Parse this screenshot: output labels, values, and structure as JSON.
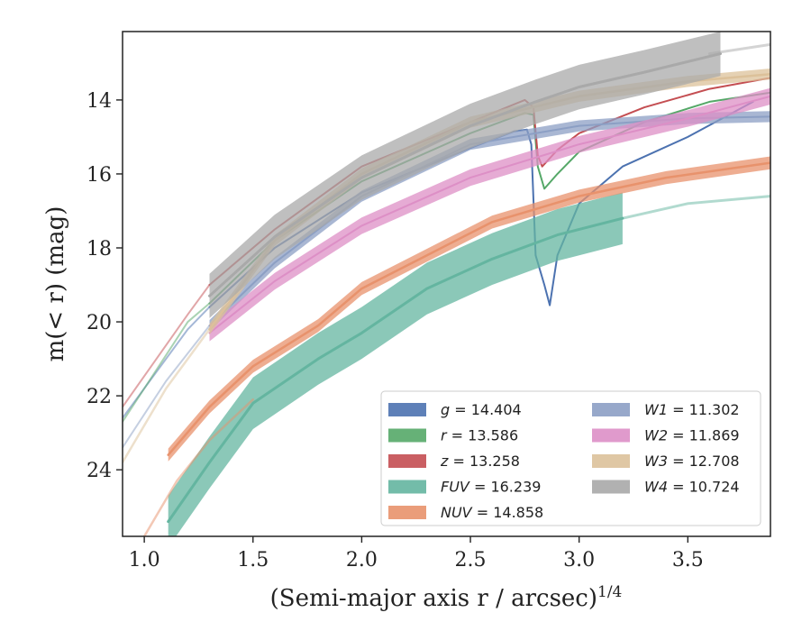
{
  "chart_data": {
    "type": "line",
    "xlabel": "(Semi-major axis r / arcsec)",
    "xlabel_sup": "1/4",
    "ylabel": "m(< r) (mag)",
    "xlim": [
      0.9,
      3.88
    ],
    "ylim": [
      25.8,
      12.15
    ],
    "y_inverted": true,
    "xticks": [
      1.0,
      1.5,
      2.0,
      2.5,
      3.0,
      3.5
    ],
    "xtick_labels": [
      "1.0",
      "1.5",
      "2.0",
      "2.5",
      "3.0",
      "3.5"
    ],
    "yticks": [
      14,
      16,
      18,
      20,
      22,
      24
    ],
    "ytick_labels": [
      "14",
      "16",
      "18",
      "20",
      "22",
      "24"
    ],
    "grid": false,
    "legend_position": "lower-right",
    "series": [
      {
        "name": "g",
        "label_value": "14.404",
        "color": "#4c72b0",
        "width": 2,
        "band": 0,
        "faint": [
          [
            0.9,
            22.6
          ],
          [
            1.2,
            20.2
          ],
          [
            1.3,
            19.6
          ]
        ],
        "points": [
          [
            1.3,
            19.6
          ],
          [
            1.6,
            18.0
          ],
          [
            2.0,
            16.5
          ],
          [
            2.5,
            15.3
          ],
          [
            2.7,
            14.85
          ],
          [
            2.76,
            14.8
          ],
          [
            2.78,
            15.2
          ],
          [
            2.8,
            18.2
          ],
          [
            2.84,
            19.0
          ],
          [
            2.865,
            19.55
          ],
          [
            2.9,
            18.2
          ],
          [
            3.0,
            16.8
          ],
          [
            3.2,
            15.8
          ],
          [
            3.5,
            15.0
          ],
          [
            3.8,
            14.05
          ]
        ]
      },
      {
        "name": "r",
        "label_value": "13.586",
        "color": "#55a868",
        "width": 2,
        "band": 0,
        "faint": [
          [
            0.9,
            22.7
          ],
          [
            1.2,
            20.0
          ],
          [
            1.3,
            19.5
          ]
        ],
        "points": [
          [
            1.3,
            19.5
          ],
          [
            1.6,
            17.8
          ],
          [
            2.0,
            16.2
          ],
          [
            2.5,
            14.9
          ],
          [
            2.75,
            14.35
          ],
          [
            2.79,
            14.4
          ],
          [
            2.81,
            15.8
          ],
          [
            2.84,
            16.4
          ],
          [
            2.9,
            16.0
          ],
          [
            3.0,
            15.4
          ],
          [
            3.3,
            14.6
          ],
          [
            3.6,
            14.05
          ],
          [
            3.88,
            13.8
          ]
        ]
      },
      {
        "name": "z",
        "label_value": "13.258",
        "color": "#c44e52",
        "width": 2,
        "band": 0,
        "faint": [
          [
            0.9,
            22.3
          ],
          [
            1.2,
            19.8
          ],
          [
            1.3,
            19.0
          ]
        ],
        "points": [
          [
            1.3,
            19.0
          ],
          [
            1.6,
            17.5
          ],
          [
            2.0,
            15.8
          ],
          [
            2.5,
            14.6
          ],
          [
            2.75,
            14.0
          ],
          [
            2.79,
            14.2
          ],
          [
            2.81,
            15.5
          ],
          [
            2.83,
            15.8
          ],
          [
            2.9,
            15.35
          ],
          [
            3.0,
            14.9
          ],
          [
            3.3,
            14.2
          ],
          [
            3.6,
            13.7
          ],
          [
            3.88,
            13.4
          ]
        ]
      },
      {
        "name": "FUV",
        "label_value": "16.239",
        "color": "#64b5a0",
        "width": 3,
        "band": 1.4,
        "faint": [
          [
            3.2,
            17.2
          ],
          [
            3.5,
            16.8
          ],
          [
            3.88,
            16.6
          ]
        ],
        "points": [
          [
            1.11,
            25.4
          ],
          [
            1.3,
            23.8
          ],
          [
            1.5,
            22.2
          ],
          [
            1.8,
            21.0
          ],
          [
            2.0,
            20.3
          ],
          [
            2.3,
            19.1
          ],
          [
            2.6,
            18.3
          ],
          [
            2.9,
            17.65
          ],
          [
            3.2,
            17.2
          ]
        ]
      },
      {
        "name": "NUV",
        "label_value": "14.858",
        "color": "#e8926c",
        "width": 2.5,
        "band": 0.35,
        "faint": [
          [
            1.0,
            25.8
          ],
          [
            1.15,
            24.3
          ],
          [
            1.3,
            23.2
          ],
          [
            1.5,
            22.1
          ]
        ],
        "points": [
          [
            1.11,
            23.6
          ],
          [
            1.3,
            22.3
          ],
          [
            1.5,
            21.2
          ],
          [
            1.8,
            20.1
          ],
          [
            2.0,
            19.1
          ],
          [
            2.3,
            18.2
          ],
          [
            2.6,
            17.3
          ],
          [
            3.0,
            16.6
          ],
          [
            3.4,
            16.1
          ],
          [
            3.88,
            15.7
          ]
        ]
      },
      {
        "name": "W1",
        "label_value": "11.302",
        "color": "#8c9fc4",
        "width": 2,
        "band": 0.3,
        "faint": [
          [
            0.9,
            23.4
          ],
          [
            1.1,
            21.6
          ],
          [
            1.3,
            20.1
          ]
        ],
        "points": [
          [
            1.3,
            20.1
          ],
          [
            1.6,
            18.4
          ],
          [
            2.0,
            16.6
          ],
          [
            2.5,
            15.2
          ],
          [
            3.0,
            14.7
          ],
          [
            3.5,
            14.5
          ],
          [
            3.88,
            14.45
          ]
        ]
      },
      {
        "name": "W2",
        "label_value": "11.869",
        "color": "#dd8fc6",
        "width": 2,
        "band": 0.45,
        "faint": [],
        "points": [
          [
            1.3,
            20.3
          ],
          [
            1.6,
            18.9
          ],
          [
            2.0,
            17.4
          ],
          [
            2.5,
            16.1
          ],
          [
            3.0,
            15.2
          ],
          [
            3.5,
            14.5
          ],
          [
            3.88,
            13.9
          ]
        ]
      },
      {
        "name": "W3",
        "label_value": "12.708",
        "color": "#dcc19a",
        "width": 2.5,
        "band": 0.3,
        "faint": [
          [
            0.9,
            23.8
          ],
          [
            1.1,
            21.8
          ],
          [
            1.3,
            20.2
          ]
        ],
        "points": [
          [
            1.3,
            20.2
          ],
          [
            1.6,
            17.8
          ],
          [
            2.0,
            16.0
          ],
          [
            2.5,
            14.6
          ],
          [
            3.0,
            13.9
          ],
          [
            3.5,
            13.5
          ],
          [
            3.88,
            13.3
          ]
        ]
      },
      {
        "name": "W4",
        "label_value": "10.724",
        "color": "#a9a9a9",
        "width": 3,
        "band": 1.2,
        "faint": [
          [
            3.6,
            12.75
          ],
          [
            3.88,
            12.5
          ]
        ],
        "points": [
          [
            1.3,
            19.3
          ],
          [
            1.6,
            17.7
          ],
          [
            2.0,
            16.1
          ],
          [
            2.5,
            14.7
          ],
          [
            2.8,
            14.05
          ],
          [
            3.0,
            13.65
          ],
          [
            3.3,
            13.25
          ],
          [
            3.65,
            12.75
          ]
        ]
      }
    ],
    "legend_left": [
      "g",
      "r",
      "z",
      "FUV",
      "NUV"
    ],
    "legend_right": [
      "W1",
      "W2",
      "W3",
      "W4"
    ]
  }
}
